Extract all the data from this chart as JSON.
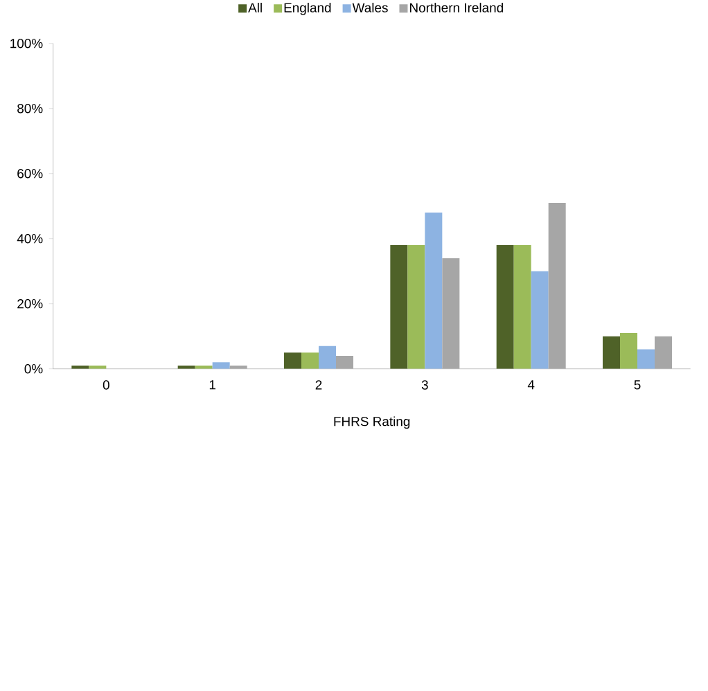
{
  "chart_data": {
    "type": "bar",
    "xlabel": "FHRS Rating",
    "categories": [
      "0",
      "1",
      "2",
      "3",
      "4",
      "5"
    ],
    "series": [
      {
        "name": "All",
        "color": "#4f6228",
        "values": [
          1,
          1,
          5,
          38,
          38,
          10
        ]
      },
      {
        "name": "England",
        "color": "#9bbb59",
        "values": [
          1,
          1,
          5,
          38,
          38,
          11
        ]
      },
      {
        "name": "Wales",
        "color": "#8db3e2",
        "values": [
          0,
          2,
          7,
          48,
          30,
          6
        ]
      },
      {
        "name": "Northern Ireland",
        "color": "#a6a6a6",
        "values": [
          0,
          1,
          4,
          34,
          51,
          10
        ]
      }
    ],
    "ylim": [
      0,
      100
    ],
    "yticks": [
      {
        "value": 0,
        "label": "0%"
      },
      {
        "value": 20,
        "label": "20%"
      },
      {
        "value": 40,
        "label": "40%"
      },
      {
        "value": 60,
        "label": "60%"
      },
      {
        "value": 80,
        "label": "80%"
      },
      {
        "value": 100,
        "label": "100%"
      }
    ],
    "legend": "top",
    "grid": false
  }
}
